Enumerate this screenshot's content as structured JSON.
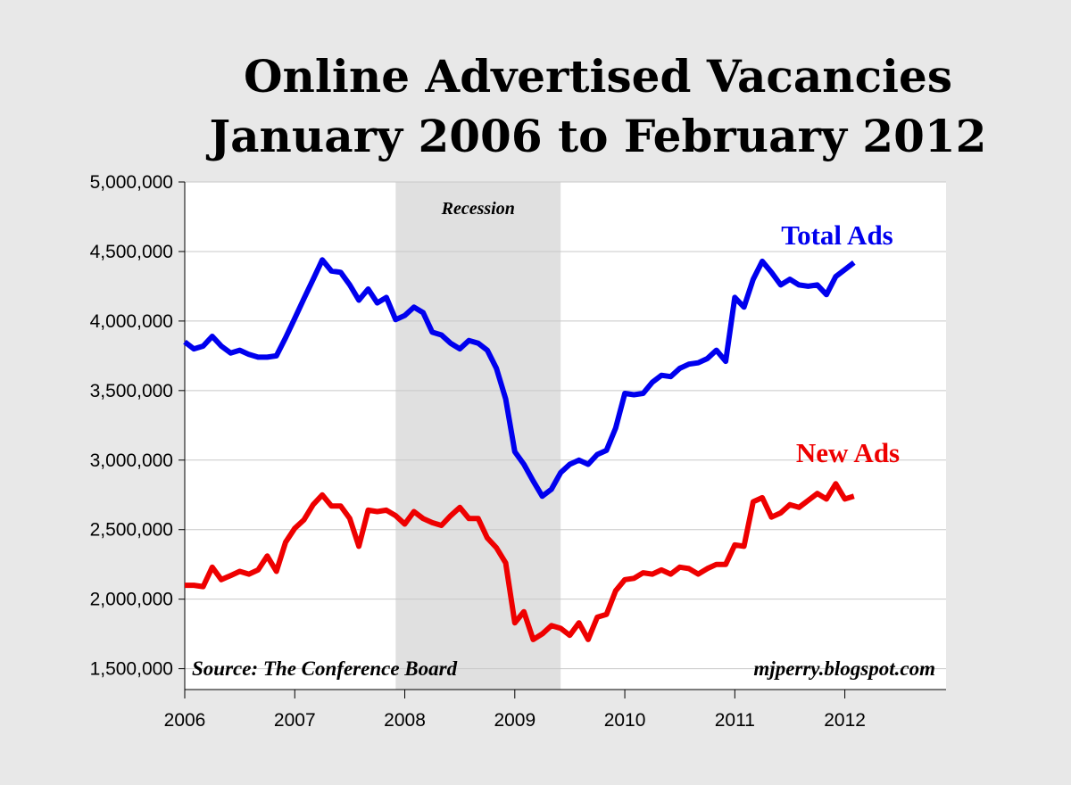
{
  "chart_data": {
    "type": "line",
    "title": "Online Advertised Vacancies",
    "subtitle": "January 2006 to February 2012",
    "x": [
      2006,
      2006.083,
      2006.167,
      2006.25,
      2006.333,
      2006.417,
      2006.5,
      2006.583,
      2006.667,
      2006.75,
      2006.833,
      2006.917,
      2007,
      2007.083,
      2007.167,
      2007.25,
      2007.333,
      2007.417,
      2007.5,
      2007.583,
      2007.667,
      2007.75,
      2007.833,
      2007.917,
      2008,
      2008.083,
      2008.167,
      2008.25,
      2008.333,
      2008.417,
      2008.5,
      2008.583,
      2008.667,
      2008.75,
      2008.833,
      2008.917,
      2009,
      2009.083,
      2009.167,
      2009.25,
      2009.333,
      2009.417,
      2009.5,
      2009.583,
      2009.667,
      2009.75,
      2009.833,
      2009.917,
      2010,
      2010.083,
      2010.167,
      2010.25,
      2010.333,
      2010.417,
      2010.5,
      2010.583,
      2010.667,
      2010.75,
      2010.833,
      2010.917,
      2011,
      2011.083,
      2011.167,
      2011.25,
      2011.333,
      2011.417,
      2011.5,
      2011.583,
      2011.667,
      2011.75,
      2011.833,
      2011.917,
      2012,
      2012.083
    ],
    "series": [
      {
        "name": "Total Ads",
        "color": "#0000ee",
        "values": [
          3850000,
          3800000,
          3820000,
          3890000,
          3820000,
          3770000,
          3790000,
          3760000,
          3740000,
          3740000,
          3750000,
          3880000,
          4020000,
          4160000,
          4300000,
          4440000,
          4360000,
          4350000,
          4260000,
          4150000,
          4230000,
          4130000,
          4170000,
          4010000,
          4040000,
          4100000,
          4060000,
          3920000,
          3900000,
          3840000,
          3800000,
          3860000,
          3840000,
          3790000,
          3660000,
          3440000,
          3060000,
          2970000,
          2850000,
          2740000,
          2790000,
          2910000,
          2970000,
          3000000,
          2970000,
          3040000,
          3070000,
          3230000,
          3480000,
          3470000,
          3480000,
          3560000,
          3610000,
          3600000,
          3660000,
          3690000,
          3700000,
          3730000,
          3790000,
          3710000,
          4170000,
          4100000,
          4300000,
          4430000,
          4350000,
          4260000,
          4300000,
          4260000,
          4250000,
          4260000,
          4190000,
          4320000,
          4370000,
          4420000
        ]
      },
      {
        "name": "New Ads",
        "color": "#ee0000",
        "values": [
          2100000,
          2100000,
          2090000,
          2230000,
          2140000,
          2170000,
          2200000,
          2180000,
          2210000,
          2310000,
          2200000,
          2410000,
          2510000,
          2570000,
          2680000,
          2750000,
          2670000,
          2670000,
          2580000,
          2380000,
          2640000,
          2630000,
          2640000,
          2600000,
          2540000,
          2630000,
          2580000,
          2550000,
          2530000,
          2600000,
          2660000,
          2580000,
          2580000,
          2440000,
          2370000,
          2260000,
          1830000,
          1910000,
          1710000,
          1750000,
          1810000,
          1790000,
          1740000,
          1830000,
          1710000,
          1870000,
          1890000,
          2060000,
          2140000,
          2150000,
          2190000,
          2180000,
          2210000,
          2180000,
          2230000,
          2220000,
          2180000,
          2220000,
          2250000,
          2250000,
          2390000,
          2380000,
          2700000,
          2730000,
          2590000,
          2620000,
          2680000,
          2660000,
          2710000,
          2760000,
          2720000,
          2830000,
          2720000,
          2740000
        ]
      }
    ],
    "xlim": [
      2006,
      2012.92
    ],
    "xticks": [
      2006,
      2007,
      2008,
      2009,
      2010,
      2011,
      2012
    ],
    "ylim": [
      1350000,
      5000000
    ],
    "yticks": [
      {
        "value": 1500000,
        "label": "1,500,000"
      },
      {
        "value": 2000000,
        "label": "2,000,000"
      },
      {
        "value": 2500000,
        "label": "2,500,000"
      },
      {
        "value": 3000000,
        "label": "3,000,000"
      },
      {
        "value": 3500000,
        "label": "3,500,000"
      },
      {
        "value": 4000000,
        "label": "4,000,000"
      },
      {
        "value": 4500000,
        "label": "4,500,000"
      },
      {
        "value": 5000000,
        "label": "5,000,000"
      }
    ],
    "grid": true,
    "shade": {
      "label": "Recession",
      "x": [
        2007.917,
        2009.417
      ]
    },
    "annotations": [
      "Source: The Conference Board",
      "mjperry.blogspot.com"
    ]
  }
}
